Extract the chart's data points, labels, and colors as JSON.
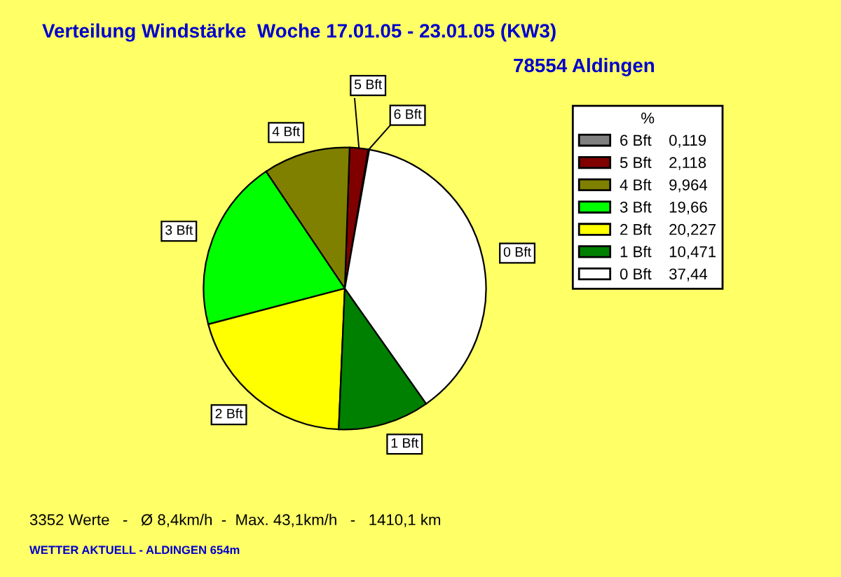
{
  "chart_data": {
    "type": "pie",
    "title": "Verteilung Windstärke  Woche 17.01.05 - 23.01.05 (KW3)",
    "subtitle": "78554 Aldingen",
    "categories": [
      "6 Bft",
      "5 Bft",
      "4 Bft",
      "3 Bft",
      "2 Bft",
      "1 Bft",
      "0 Bft"
    ],
    "values": [
      0.119,
      2.118,
      9.964,
      19.66,
      20.227,
      10.471,
      37.44
    ],
    "value_labels": [
      "0,119",
      "2,118",
      "9,964",
      "19,66",
      "20,227",
      "10,471",
      "37,44"
    ],
    "colors": [
      "#808080",
      "#800000",
      "#808000",
      "#00ff00",
      "#ffff00",
      "#008000",
      "#ffffff"
    ],
    "legend_title": "%",
    "legend": "top right",
    "annotations": [
      "3352 Werte   -   Ø 8,4km/h  -  Max. 43,1km/h   -   1410,1 km",
      "WETTER AKTUELL - ALDINGEN 654m"
    ]
  }
}
